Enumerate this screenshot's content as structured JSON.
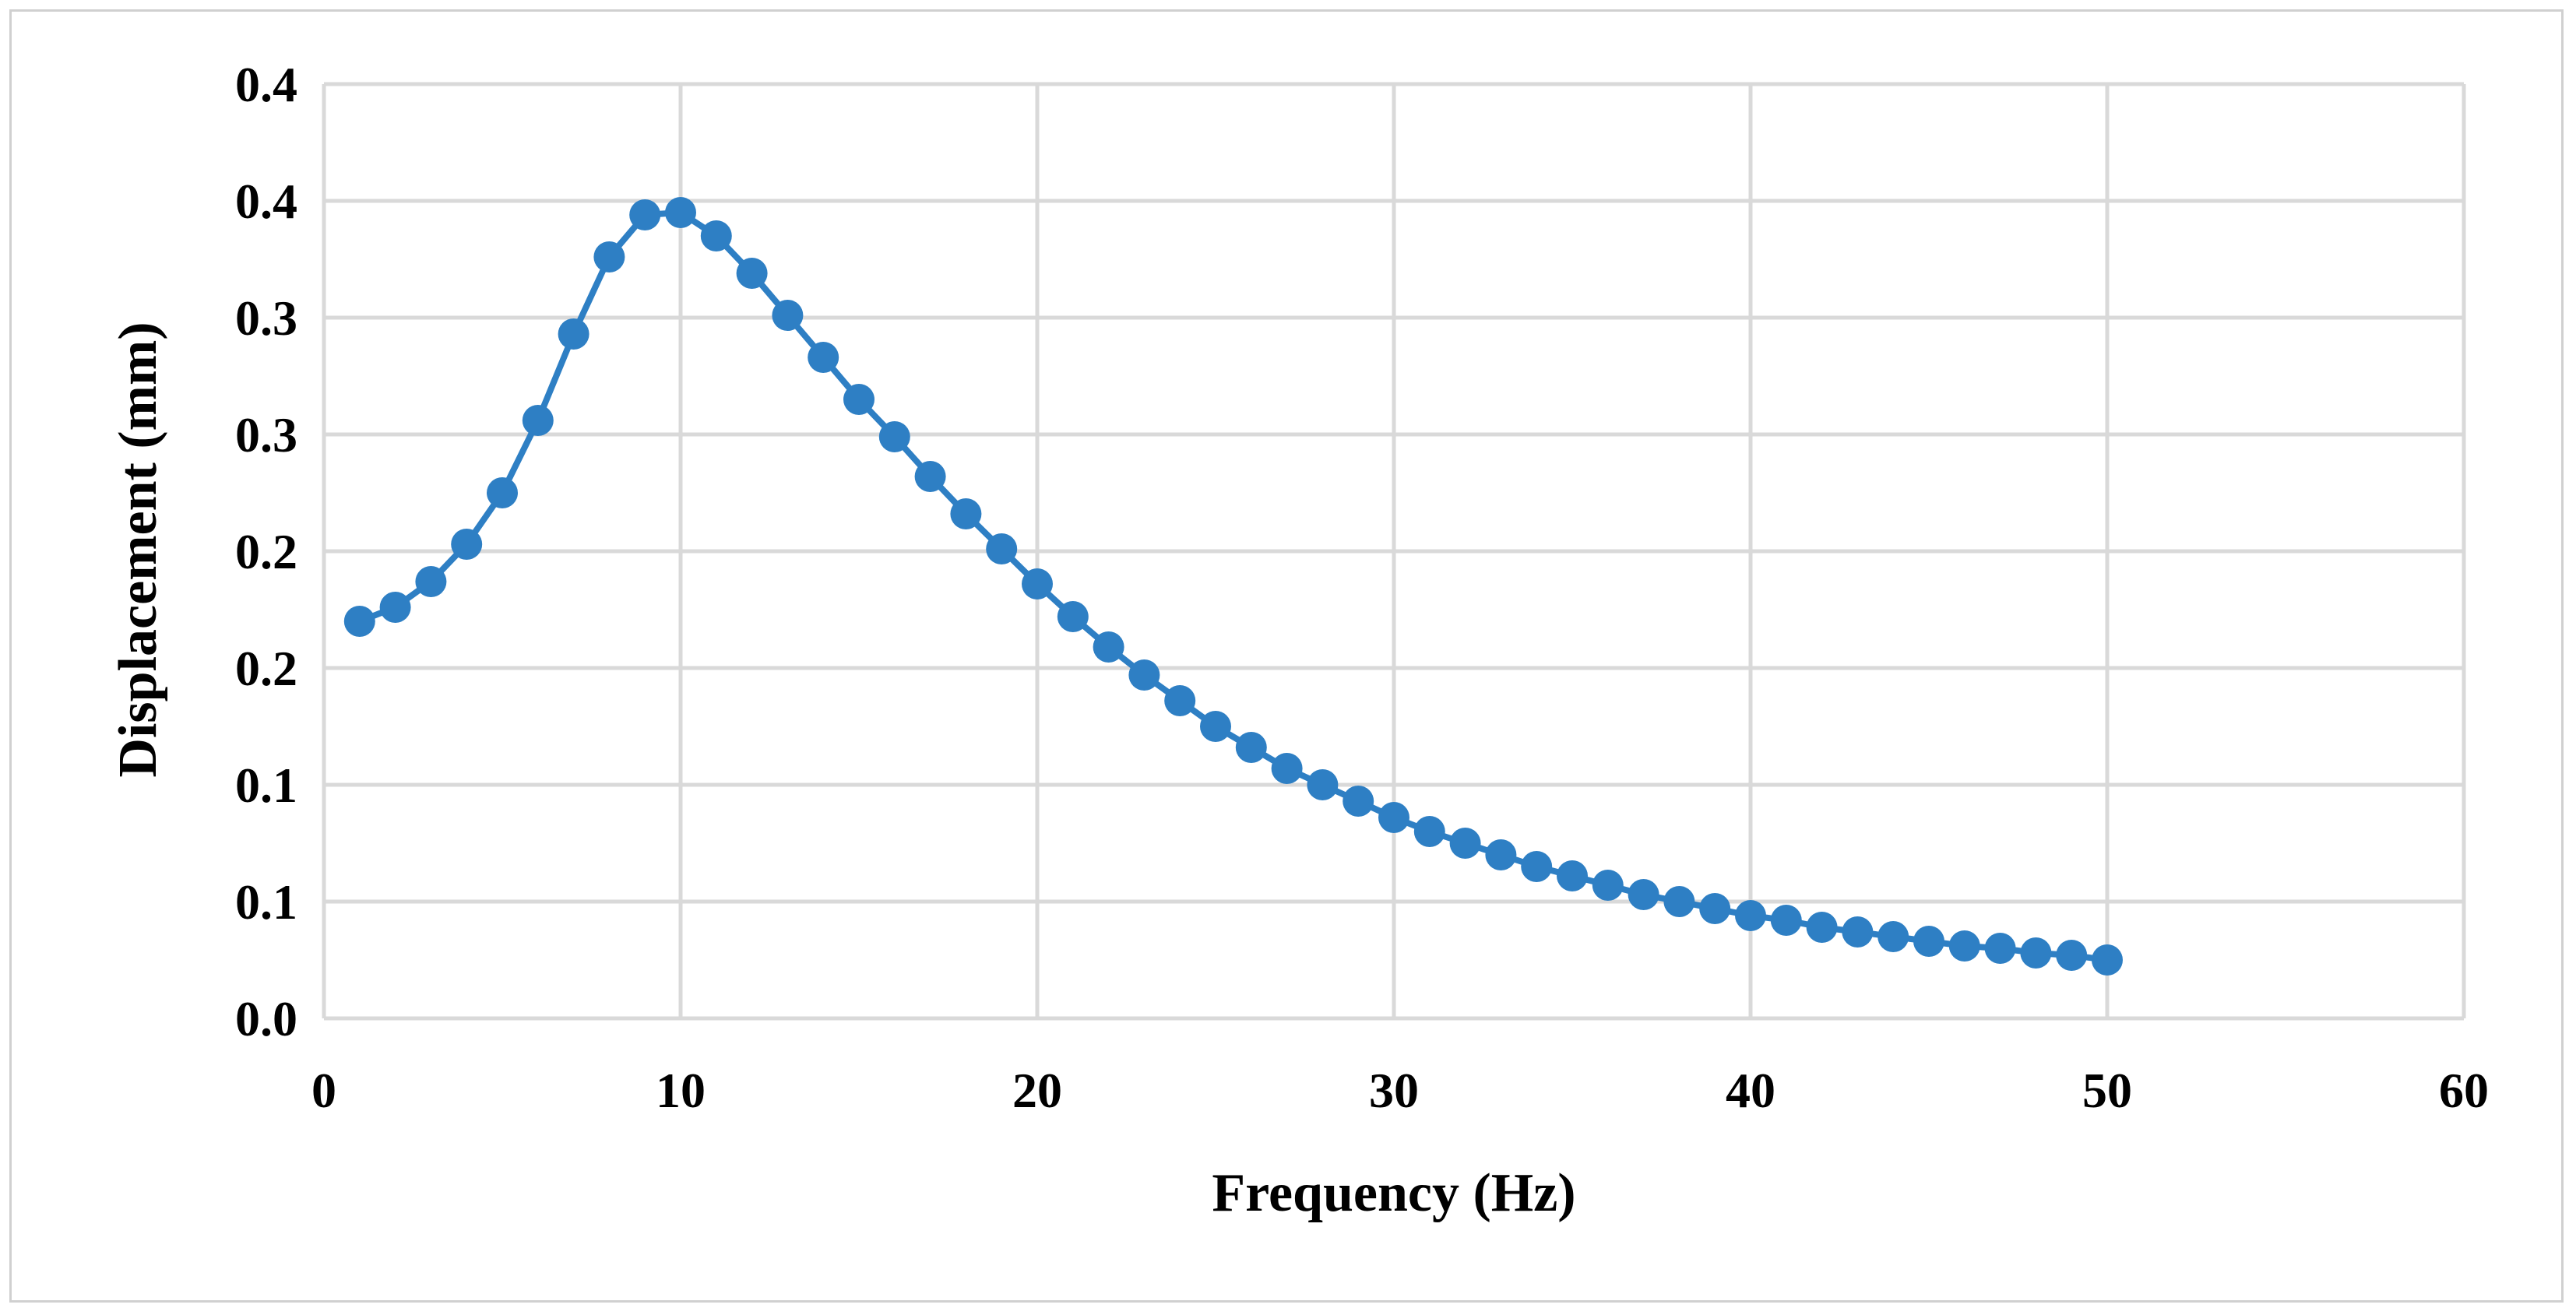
{
  "chart_data": {
    "type": "line",
    "title": "",
    "xlabel": "Frequency (Hz)",
    "ylabel": "Displacement  (mm)",
    "xlim": [
      0,
      60
    ],
    "ylim": [
      0,
      0.4
    ],
    "x_ticks": [
      0,
      10,
      20,
      30,
      40,
      50,
      60
    ],
    "x_tick_labels": [
      "0",
      "10",
      "20",
      "30",
      "40",
      "50",
      "60"
    ],
    "y_ticks": [
      0,
      0.05,
      0.1,
      0.15,
      0.2,
      0.25,
      0.3,
      0.35,
      0.4
    ],
    "y_tick_labels": [
      "0.0",
      "0.1",
      "0.1",
      "0.2",
      "0.2",
      "0.3",
      "0.3",
      "0.4",
      "0.4"
    ],
    "grid": true,
    "legend": "none",
    "series": [
      {
        "color": "#2e7fc4",
        "marker": "circle",
        "x": [
          1,
          2,
          3,
          4,
          5,
          6,
          7,
          8,
          9,
          10,
          11,
          12,
          13,
          14,
          15,
          16,
          17,
          18,
          19,
          20,
          21,
          22,
          23,
          24,
          25,
          26,
          27,
          28,
          29,
          30,
          31,
          32,
          33,
          34,
          35,
          36,
          37,
          38,
          39,
          40,
          41,
          42,
          43,
          44,
          45,
          46,
          47,
          48,
          49,
          50
        ],
        "y": [
          0.17,
          0.176,
          0.187,
          0.203,
          0.225,
          0.256,
          0.293,
          0.326,
          0.344,
          0.345,
          0.335,
          0.319,
          0.301,
          0.283,
          0.265,
          0.249,
          0.232,
          0.216,
          0.201,
          0.186,
          0.172,
          0.159,
          0.147,
          0.136,
          0.125,
          0.116,
          0.107,
          0.1,
          0.093,
          0.086,
          0.08,
          0.075,
          0.07,
          0.065,
          0.061,
          0.057,
          0.053,
          0.05,
          0.047,
          0.044,
          0.042,
          0.039,
          0.037,
          0.035,
          0.033,
          0.031,
          0.03,
          0.028,
          0.027,
          0.025
        ]
      }
    ]
  }
}
